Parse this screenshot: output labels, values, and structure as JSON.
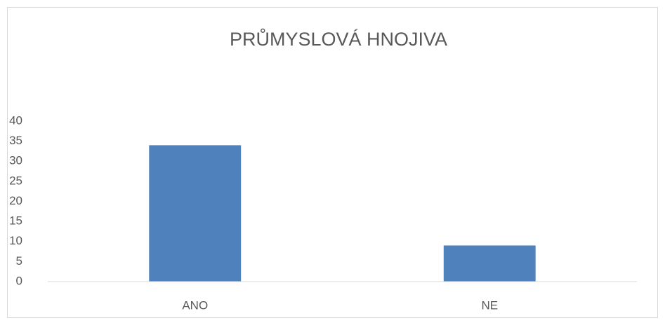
{
  "chart_data": {
    "type": "bar",
    "title": "PRŮMYSLOVÁ HNOJIVA",
    "categories": [
      "ANO",
      "NE"
    ],
    "values": [
      34,
      9
    ],
    "color": "#4f81bd",
    "ylim": [
      0,
      40
    ],
    "yticks": [
      0,
      5,
      10,
      15,
      20,
      25,
      30,
      35,
      40
    ],
    "grid": false
  }
}
